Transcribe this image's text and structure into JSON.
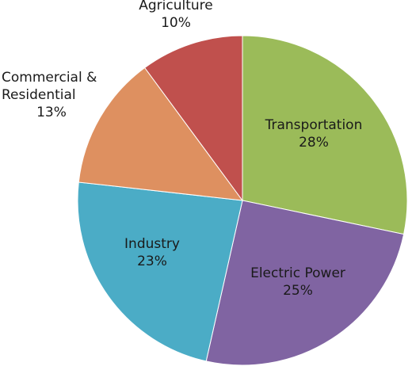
{
  "chart_data": {
    "type": "pie",
    "start_angle_deg": 0,
    "direction": "clockwise",
    "slices": [
      {
        "label": "Transportation",
        "value": 28,
        "value_label": "28%",
        "color": "#9bbb59"
      },
      {
        "label": "Electric Power",
        "value": 25,
        "value_label": "25%",
        "color": "#8064a2"
      },
      {
        "label": "Industry",
        "value": 23,
        "value_label": "23%",
        "color": "#4bacc6"
      },
      {
        "label": "Commercial & Residential",
        "value": 13,
        "value_label": "13%",
        "color": "#de9060"
      },
      {
        "label": "Agriculture",
        "value": 10,
        "value_label": "10%",
        "color": "#c0504d"
      }
    ]
  }
}
